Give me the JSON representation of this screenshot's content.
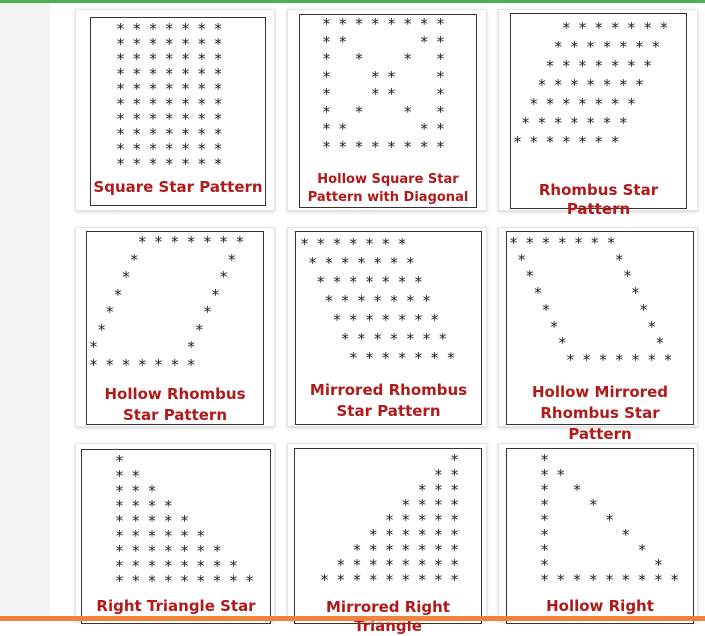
{
  "colors": {
    "accent_top": "#4caf50",
    "accent_bottom": "#f0823c",
    "caption": "#b01a1a"
  },
  "cards": [
    {
      "id": "square",
      "pattern": "* * * * * * *\n* * * * * * *\n* * * * * * *\n* * * * * * *\n* * * * * * *\n* * * * * * *\n* * * * * * *\n* * * * * * *\n* * * * * * *\n* * * * * * *",
      "caption": [
        "Square Star Pattern"
      ]
    },
    {
      "id": "hollow-square-diagonal",
      "pattern": "* * * * * * * *\n* *         * *\n*   *     *   *\n*     * *     *\n*     * *     *\n*   *     *   *\n* *         * *\n* * * * * * * *",
      "caption": [
        "Hollow Square Star",
        "Pattern with Diagonal"
      ]
    },
    {
      "id": "rhombus",
      "pattern": "      * * * * * * *\n     * * * * * * *\n    * * * * * * *\n   * * * * * * *\n  * * * * * * *\n * * * * * * *\n* * * * * * *",
      "caption": [
        "Rhombus Star Pattern"
      ]
    },
    {
      "id": "hollow-rhombus",
      "pattern": "      * * * * * * *\n     *           *\n    *           *\n   *           *\n  *           *\n *           *\n*           *\n* * * * * * *",
      "caption": [
        "Hollow Rhombus",
        "Star Pattern"
      ]
    },
    {
      "id": "mirrored-rhombus",
      "pattern": "* * * * * * *\n * * * * * * *\n  * * * * * * *\n   * * * * * * *\n    * * * * * * *\n     * * * * * * *\n      * * * * * * *",
      "caption": [
        "Mirrored Rhombus",
        "Star Pattern"
      ]
    },
    {
      "id": "hollow-mirrored-rhombus",
      "pattern": "* * * * * * *\n *           *\n  *           *\n   *           *\n    *           *\n     *           *\n      *           *\n       * * * * * * *",
      "caption": [
        "Hollow Mirrored",
        "Rhombus Star Pattern"
      ]
    },
    {
      "id": "right-triangle",
      "pattern": "*\n* *\n* * *\n* * * *\n* * * * *\n* * * * * *\n* * * * * * *\n* * * * * * * *\n* * * * * * * * *",
      "caption": [
        "Right Triangle Star"
      ]
    },
    {
      "id": "mirrored-right-triangle",
      "pattern": "                *\n              * *\n            * * *\n          * * * *\n        * * * * *\n      * * * * * *\n    * * * * * * *\n  * * * * * * * *\n* * * * * * * * *",
      "caption": [
        "Mirrored Right Triangle"
      ]
    },
    {
      "id": "hollow-right-triangle",
      "pattern": "*\n* *\n*   *\n*     *\n*       *\n*         *\n*           *\n*             *\n* * * * * * * * *",
      "caption": [
        "Hollow Right"
      ]
    }
  ]
}
